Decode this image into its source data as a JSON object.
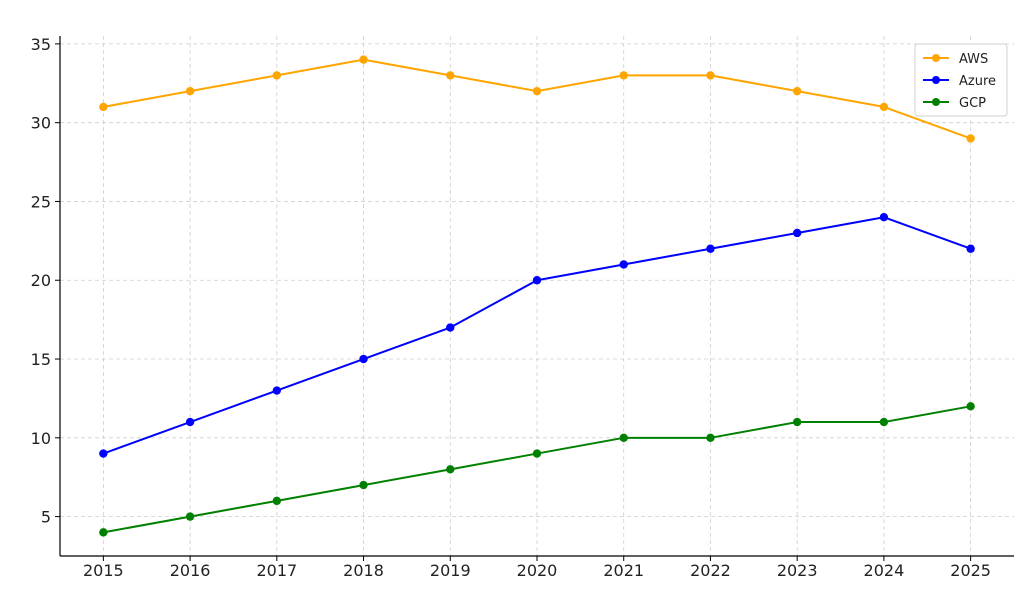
{
  "chart_data": {
    "type": "line",
    "title": "",
    "xlabel": "",
    "ylabel": "",
    "x": [
      2015,
      2016,
      2017,
      2018,
      2019,
      2020,
      2021,
      2022,
      2023,
      2024,
      2025
    ],
    "xticks": [
      "2015",
      "2016",
      "2017",
      "2018",
      "2019",
      "2020",
      "2021",
      "2022",
      "2023",
      "2024",
      "2025"
    ],
    "yticks": [
      5,
      10,
      15,
      20,
      25,
      30,
      35
    ],
    "ylim": [
      2.5,
      35.5
    ],
    "xlim": [
      2014.5,
      2025.5
    ],
    "grid": true,
    "legend_position": "top-right",
    "series": [
      {
        "name": "AWS",
        "color": "#FFA500",
        "values": [
          31,
          32,
          33,
          34,
          33,
          32,
          33,
          33,
          32,
          31,
          29
        ]
      },
      {
        "name": "Azure",
        "color": "#0000FF",
        "values": [
          9,
          11,
          13,
          15,
          17,
          20,
          21,
          22,
          23,
          24,
          22
        ]
      },
      {
        "name": "GCP",
        "color": "#008000",
        "values": [
          4,
          5,
          6,
          7,
          8,
          9,
          10,
          10,
          11,
          11,
          12
        ]
      }
    ]
  }
}
